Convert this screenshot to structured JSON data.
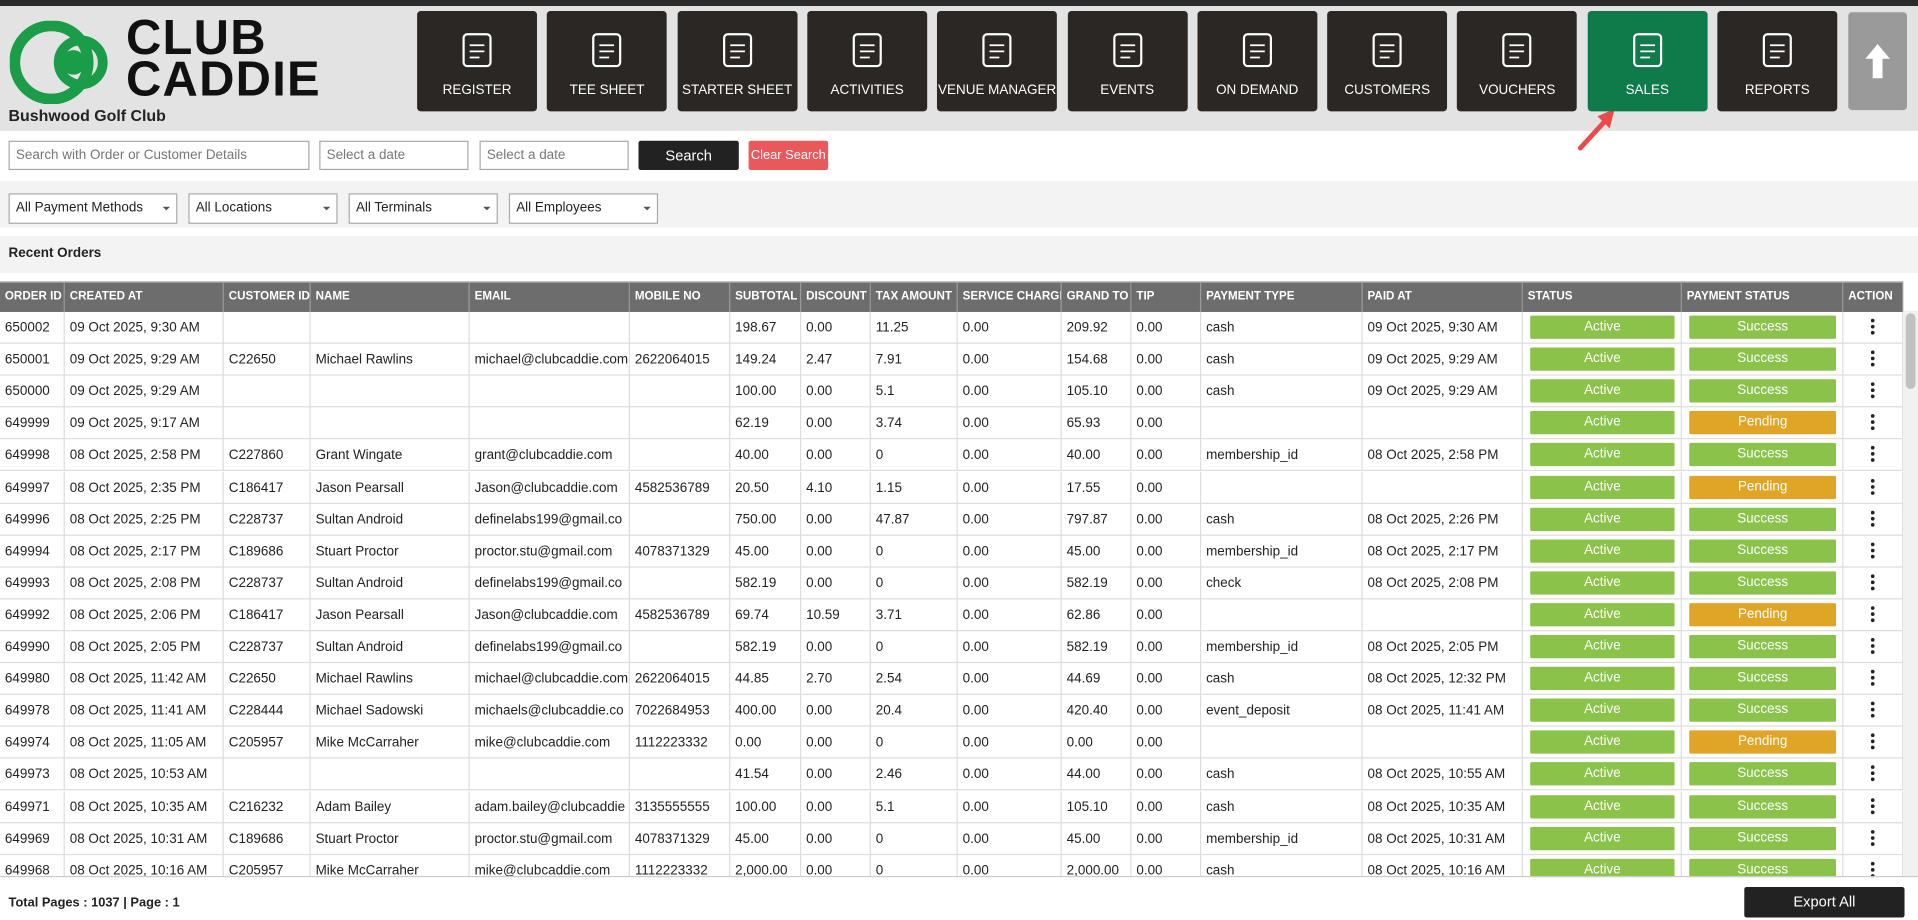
{
  "header": {
    "logo_line1": "CLUB",
    "logo_line2": "CADDIE",
    "club_name": "Bushwood Golf Club"
  },
  "nav": [
    "REGISTER",
    "TEE SHEET",
    "STARTER SHEET",
    "ACTIVITIES",
    "VENUE MANAGER",
    "EVENTS",
    "ON DEMAND",
    "CUSTOMERS",
    "VOUCHERS",
    "SALES",
    "REPORTS"
  ],
  "search": {
    "placeholder": "Search with Order or Customer Details",
    "date_from": "Select a date",
    "date_to": "Select a date",
    "search_button": "Search",
    "clear_button": "Clear Search"
  },
  "filters": [
    "All Payment Methods",
    "All Locations",
    "All Terminals",
    "All Employees"
  ],
  "section_title": "Recent Orders",
  "table": {
    "columns": [
      "ORDER ID",
      "CREATED AT",
      "CUSTOMER ID",
      "NAME",
      "EMAIL",
      "MOBILE NO",
      "SUBTOTAL",
      "DISCOUNT",
      "TAX AMOUNT",
      "SERVICE CHARGE",
      "GRAND TO",
      "TIP",
      "PAYMENT TYPE",
      "PAID AT",
      "STATUS",
      "PAYMENT STATUS",
      "ACTION"
    ],
    "rows": [
      [
        "650002",
        "09 Oct 2025, 9:30 AM",
        "",
        "",
        "",
        "",
        "198.67",
        "0.00",
        "11.25",
        "0.00",
        "209.92",
        "0.00",
        "cash",
        "09 Oct 2025, 9:30 AM",
        "Active",
        "Success"
      ],
      [
        "650001",
        "09 Oct 2025, 9:29 AM",
        "C22650",
        "Michael Rawlins",
        "michael@clubcaddie.com",
        "2622064015",
        "149.24",
        "2.47",
        "7.91",
        "0.00",
        "154.68",
        "0.00",
        "cash",
        "09 Oct 2025, 9:29 AM",
        "Active",
        "Success"
      ],
      [
        "650000",
        "09 Oct 2025, 9:29 AM",
        "",
        "",
        "",
        "",
        "100.00",
        "0.00",
        "5.1",
        "0.00",
        "105.10",
        "0.00",
        "cash",
        "09 Oct 2025, 9:29 AM",
        "Active",
        "Success"
      ],
      [
        "649999",
        "09 Oct 2025, 9:17 AM",
        "",
        "",
        "",
        "",
        "62.19",
        "0.00",
        "3.74",
        "0.00",
        "65.93",
        "0.00",
        "",
        "",
        "Active",
        "Pending"
      ],
      [
        "649998",
        "08 Oct 2025, 2:58 PM",
        "C227860",
        "Grant Wingate",
        "grant@clubcaddie.com",
        "",
        "40.00",
        "0.00",
        "0",
        "0.00",
        "40.00",
        "0.00",
        "membership_id",
        "08 Oct 2025, 2:58 PM",
        "Active",
        "Success"
      ],
      [
        "649997",
        "08 Oct 2025, 2:35 PM",
        "C186417",
        "Jason Pearsall",
        "Jason@clubcaddie.com",
        "4582536789",
        "20.50",
        "4.10",
        "1.15",
        "0.00",
        "17.55",
        "0.00",
        "",
        "",
        "Active",
        "Pending"
      ],
      [
        "649996",
        "08 Oct 2025, 2:25 PM",
        "C228737",
        "Sultan Android",
        "definelabs199@gmail.co",
        "",
        "750.00",
        "0.00",
        "47.87",
        "0.00",
        "797.87",
        "0.00",
        "cash",
        "08 Oct 2025, 2:26 PM",
        "Active",
        "Success"
      ],
      [
        "649994",
        "08 Oct 2025, 2:17 PM",
        "C189686",
        "Stuart Proctor",
        "proctor.stu@gmail.com",
        "4078371329",
        "45.00",
        "0.00",
        "0",
        "0.00",
        "45.00",
        "0.00",
        "membership_id",
        "08 Oct 2025, 2:17 PM",
        "Active",
        "Success"
      ],
      [
        "649993",
        "08 Oct 2025, 2:08 PM",
        "C228737",
        "Sultan Android",
        "definelabs199@gmail.co",
        "",
        "582.19",
        "0.00",
        "0",
        "0.00",
        "582.19",
        "0.00",
        "check",
        "08 Oct 2025, 2:08 PM",
        "Active",
        "Success"
      ],
      [
        "649992",
        "08 Oct 2025, 2:06 PM",
        "C186417",
        "Jason Pearsall",
        "Jason@clubcaddie.com",
        "4582536789",
        "69.74",
        "10.59",
        "3.71",
        "0.00",
        "62.86",
        "0.00",
        "",
        "",
        "Active",
        "Pending"
      ],
      [
        "649990",
        "08 Oct 2025, 2:05 PM",
        "C228737",
        "Sultan Android",
        "definelabs199@gmail.co",
        "",
        "582.19",
        "0.00",
        "0",
        "0.00",
        "582.19",
        "0.00",
        "membership_id",
        "08 Oct 2025, 2:05 PM",
        "Active",
        "Success"
      ],
      [
        "649980",
        "08 Oct 2025, 11:42 AM",
        "C22650",
        "Michael Rawlins",
        "michael@clubcaddie.com",
        "2622064015",
        "44.85",
        "2.70",
        "2.54",
        "0.00",
        "44.69",
        "0.00",
        "cash",
        "08 Oct 2025, 12:32 PM",
        "Active",
        "Success"
      ],
      [
        "649978",
        "08 Oct 2025, 11:41 AM",
        "C228444",
        "Michael Sadowski",
        "michaels@clubcaddie.co",
        "7022684953",
        "400.00",
        "0.00",
        "20.4",
        "0.00",
        "420.40",
        "0.00",
        "event_deposit",
        "08 Oct 2025, 11:41 AM",
        "Active",
        "Success"
      ],
      [
        "649974",
        "08 Oct 2025, 11:05 AM",
        "C205957",
        "Mike McCarraher",
        "mike@clubcaddie.com",
        "1112223332",
        "0.00",
        "0.00",
        "0",
        "0.00",
        "0.00",
        "0.00",
        "",
        "",
        "Active",
        "Pending"
      ],
      [
        "649973",
        "08 Oct 2025, 10:53 AM",
        "",
        "",
        "",
        "",
        "41.54",
        "0.00",
        "2.46",
        "0.00",
        "44.00",
        "0.00",
        "cash",
        "08 Oct 2025, 10:55 AM",
        "Active",
        "Success"
      ],
      [
        "649971",
        "08 Oct 2025, 10:35 AM",
        "C216232",
        "Adam Bailey",
        "adam.bailey@clubcaddie",
        "3135555555",
        "100.00",
        "0.00",
        "5.1",
        "0.00",
        "105.10",
        "0.00",
        "cash",
        "08 Oct 2025, 10:35 AM",
        "Active",
        "Success"
      ],
      [
        "649969",
        "08 Oct 2025, 10:31 AM",
        "C189686",
        "Stuart Proctor",
        "proctor.stu@gmail.com",
        "4078371329",
        "45.00",
        "0.00",
        "0",
        "0.00",
        "45.00",
        "0.00",
        "membership_id",
        "08 Oct 2025, 10:31 AM",
        "Active",
        "Success"
      ],
      [
        "649968",
        "08 Oct 2025, 10:16 AM",
        "C205957",
        "Mike McCarraher",
        "mike@clubcaddie.com",
        "1112223332",
        "2,000.00",
        "0.00",
        "0",
        "0.00",
        "2,000.00",
        "0.00",
        "cash",
        "08 Oct 2025, 10:16 AM",
        "Active",
        "Success"
      ]
    ],
    "badge_colors": {
      "Active": "#8bc34a",
      "Success": "#8bc34a",
      "Pending": "#e0a526"
    }
  },
  "footer": {
    "pages": "Total Pages : 1037 | Page : 1",
    "export_button": "Export All"
  }
}
